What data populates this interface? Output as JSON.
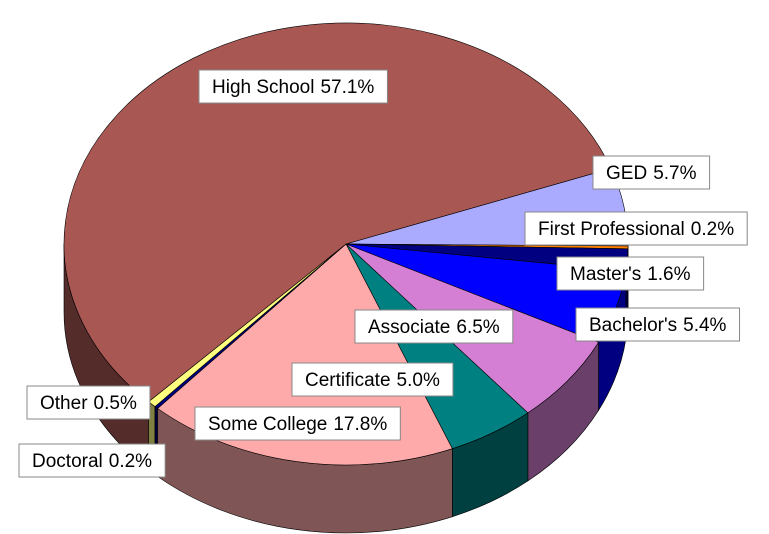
{
  "chart_data": {
    "type": "pie3d",
    "categories": [
      "GED",
      "First Professional",
      "Master's",
      "Bachelor's",
      "Associate",
      "Certificate",
      "Some College",
      "Doctoral",
      "Other",
      "High School"
    ],
    "values": [
      5.7,
      0.2,
      1.6,
      5.4,
      6.5,
      5.0,
      17.8,
      0.2,
      0.5,
      57.1
    ],
    "value_labels": [
      "5.7%",
      "0.2%",
      "1.6%",
      "5.4%",
      "6.5%",
      "5.0%",
      "17.8%",
      "0.2%",
      "0.5%",
      "57.1%"
    ],
    "colors": [
      "#aaaaff",
      "#ff8000",
      "#000080",
      "#0000ff",
      "#d47fd4",
      "#008080",
      "#ffaaaa",
      "#000080",
      "#ffff80",
      "#a85753"
    ]
  }
}
